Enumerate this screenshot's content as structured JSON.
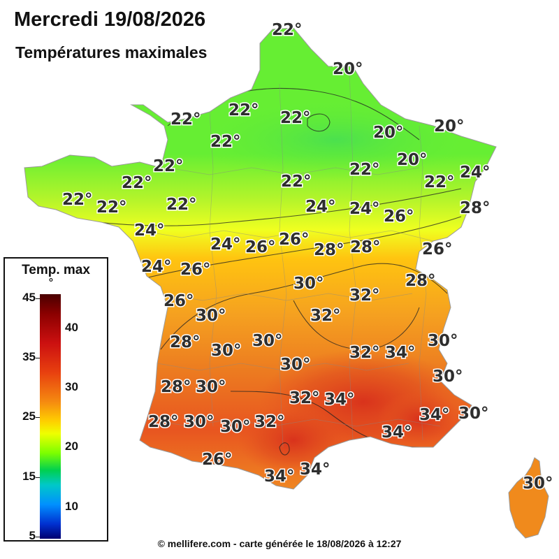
{
  "title": "Mercredi 19/08/2026",
  "subtitle": "Températures maximales",
  "colors": {
    "cool": "#66ee33",
    "mild": "#ddff22",
    "warm": "#ffc410",
    "hot": "#f5a020",
    "very_hot": "#e85520",
    "hottest": "#d8301c"
  },
  "map_labels": [
    {
      "id": "lille",
      "text": "22°"
    },
    {
      "id": "hainaut",
      "text": "20°"
    },
    {
      "id": "rouen",
      "text": "22°"
    },
    {
      "id": "amiens",
      "text": "22°"
    },
    {
      "id": "reims",
      "text": "22°"
    },
    {
      "id": "ardennes",
      "text": "20°"
    },
    {
      "id": "alsace-north",
      "text": "20°"
    },
    {
      "id": "evreux",
      "text": "22°"
    },
    {
      "id": "metz",
      "text": "20°"
    },
    {
      "id": "caen",
      "text": "22°"
    },
    {
      "id": "paris",
      "text": "22°"
    },
    {
      "id": "nancy",
      "text": "22°"
    },
    {
      "id": "vosges",
      "text": "22°"
    },
    {
      "id": "strasbourg",
      "text": "24°"
    },
    {
      "id": "st-brieuc",
      "text": "22°"
    },
    {
      "id": "brest",
      "text": "22°"
    },
    {
      "id": "quimper",
      "text": "22°"
    },
    {
      "id": "rennes",
      "text": "22°"
    },
    {
      "id": "orleans",
      "text": "24°"
    },
    {
      "id": "dijon-north",
      "text": "24°"
    },
    {
      "id": "besancon",
      "text": "26°"
    },
    {
      "id": "mulhouse",
      "text": "28°"
    },
    {
      "id": "vannes",
      "text": "24°"
    },
    {
      "id": "tours",
      "text": "24°"
    },
    {
      "id": "bourges",
      "text": "26°"
    },
    {
      "id": "nevers",
      "text": "26°"
    },
    {
      "id": "macon",
      "text": "28°"
    },
    {
      "id": "bourg",
      "text": "28°"
    },
    {
      "id": "geneva",
      "text": "26°"
    },
    {
      "id": "nantes",
      "text": "24°"
    },
    {
      "id": "poitiers",
      "text": "26°"
    },
    {
      "id": "clermont",
      "text": "30°"
    },
    {
      "id": "chambery",
      "text": "28°"
    },
    {
      "id": "la-rochelle",
      "text": "26°"
    },
    {
      "id": "lyon",
      "text": "32°"
    },
    {
      "id": "limoges",
      "text": "30°"
    },
    {
      "id": "st-etienne",
      "text": "32°"
    },
    {
      "id": "royan",
      "text": "28°"
    },
    {
      "id": "perigueux",
      "text": "30°"
    },
    {
      "id": "aurillac",
      "text": "30°"
    },
    {
      "id": "grenoble",
      "text": "30°"
    },
    {
      "id": "cahors",
      "text": "30°"
    },
    {
      "id": "valence",
      "text": "32°"
    },
    {
      "id": "gap",
      "text": "34°"
    },
    {
      "id": "briancon",
      "text": "30°"
    },
    {
      "id": "bordeaux",
      "text": "28°"
    },
    {
      "id": "agen",
      "text": "30°"
    },
    {
      "id": "rodez",
      "text": "32°"
    },
    {
      "id": "nimes",
      "text": "34°"
    },
    {
      "id": "landes",
      "text": "28°"
    },
    {
      "id": "mont-de-marsan",
      "text": "30°"
    },
    {
      "id": "toulouse",
      "text": "30°"
    },
    {
      "id": "carcassonne",
      "text": "32°"
    },
    {
      "id": "digne",
      "text": "34°"
    },
    {
      "id": "nice",
      "text": "30°"
    },
    {
      "id": "marseille",
      "text": "34°"
    },
    {
      "id": "pau",
      "text": "26°"
    },
    {
      "id": "perpignan",
      "text": "34°"
    },
    {
      "id": "narbonne",
      "text": "34°"
    },
    {
      "id": "corsica",
      "text": "30°"
    }
  ],
  "legend": {
    "title": "Temp. max",
    "unit": "°",
    "left_ticks": [
      "45",
      "35",
      "25",
      "15",
      "5"
    ],
    "right_ticks": [
      "40",
      "30",
      "20",
      "10"
    ]
  },
  "credit": "© mellifere.com - carte générée le 18/08/2026 à 12:27"
}
